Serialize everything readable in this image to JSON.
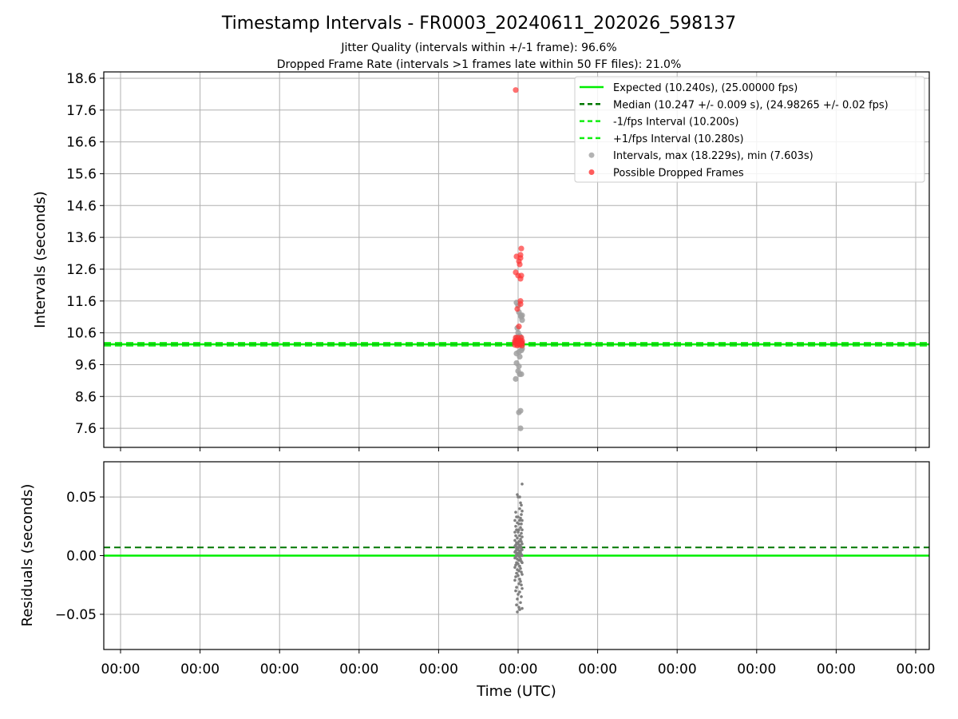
{
  "figure": {
    "title": "Timestamp Intervals - FR0003_20240611_202026_598137",
    "subtitle_line1": "Jitter Quality (intervals within +/-1 frame): 96.6%",
    "subtitle_line2": "Dropped Frame Rate (intervals >1 frames late within 50 FF files): 21.0%"
  },
  "colors": {
    "expected": "#00ee00",
    "median": "#007700",
    "fps_interval": "#11ee11",
    "intervals": "#a0a0a0",
    "dropped": "#ff3333",
    "residuals": "#7f7f7f",
    "grid": "#b0b0b0"
  },
  "chart_data": [
    {
      "type": "scatter",
      "ylabel": "Intervals (seconds)",
      "xlabel": "",
      "ylim": [
        7.0,
        18.8
      ],
      "yticks": [
        "7.6",
        "8.6",
        "9.6",
        "10.6",
        "11.6",
        "12.6",
        "13.6",
        "14.6",
        "15.6",
        "16.6",
        "17.6",
        "18.6"
      ],
      "grid": true,
      "legend_position": "top-right",
      "legend": [
        "Expected (10.240s), (25.00000 fps)",
        "Median (10.247 +/- 0.009 s), (24.98265 +/- 0.02 fps)",
        "-1/fps Interval (10.200s)",
        "+1/fps Interval (10.280s)",
        "Intervals, max (18.229s), min (7.603s)",
        "Possible Dropped Frames"
      ],
      "lines": {
        "expected": 10.24,
        "median": 10.247,
        "minus_fps": 10.2,
        "plus_fps": 10.28
      },
      "series": [
        {
          "name": "Intervals, max (18.229s), min (7.603s)",
          "points": [
            [
              -0.04,
              11.55
            ],
            [
              0.0,
              11.45
            ],
            [
              0.02,
              11.25
            ],
            [
              0.06,
              11.15
            ],
            [
              0.08,
              11.1
            ],
            [
              0.1,
              11.15
            ],
            [
              0.1,
              11.0
            ],
            [
              -0.02,
              10.75
            ],
            [
              0.0,
              10.6
            ],
            [
              0.04,
              10.5
            ],
            [
              -0.04,
              10.45
            ],
            [
              0.06,
              10.45
            ],
            [
              0.1,
              10.1
            ],
            [
              0.08,
              10.05
            ],
            [
              0.02,
              10.0
            ],
            [
              -0.04,
              9.95
            ],
            [
              0.04,
              9.85
            ],
            [
              -0.04,
              9.65
            ],
            [
              0.02,
              9.55
            ],
            [
              0.0,
              9.4
            ],
            [
              0.04,
              9.3
            ],
            [
              0.08,
              9.3
            ],
            [
              -0.06,
              9.15
            ],
            [
              0.02,
              8.1
            ],
            [
              0.06,
              8.15
            ],
            [
              0.06,
              7.6
            ]
          ]
        },
        {
          "name": "Possible Dropped Frames",
          "points": [
            [
              -0.06,
              18.23
            ],
            [
              0.08,
              13.25
            ],
            [
              0.06,
              13.05
            ],
            [
              -0.04,
              13.0
            ],
            [
              0.06,
              12.95
            ],
            [
              0.02,
              12.85
            ],
            [
              0.04,
              12.75
            ],
            [
              -0.06,
              12.5
            ],
            [
              0.0,
              12.4
            ],
            [
              0.08,
              12.4
            ],
            [
              0.06,
              12.3
            ],
            [
              0.06,
              11.6
            ],
            [
              0.06,
              11.5
            ],
            [
              -0.02,
              11.35
            ],
            [
              0.02,
              10.8
            ],
            [
              -0.06,
              10.45
            ],
            [
              0.0,
              10.45
            ],
            [
              0.08,
              10.45
            ],
            [
              -0.08,
              10.35
            ],
            [
              -0.04,
              10.35
            ],
            [
              0.02,
              10.35
            ],
            [
              0.06,
              10.35
            ],
            [
              0.1,
              10.35
            ],
            [
              -0.08,
              10.3
            ],
            [
              -0.02,
              10.3
            ],
            [
              0.04,
              10.3
            ],
            [
              0.08,
              10.3
            ],
            [
              -0.06,
              10.28
            ],
            [
              0.0,
              10.28
            ],
            [
              0.06,
              10.28
            ],
            [
              0.1,
              10.28
            ],
            [
              -0.04,
              10.25
            ],
            [
              0.02,
              10.25
            ],
            [
              0.08,
              10.25
            ],
            [
              -0.08,
              10.22
            ],
            [
              0.04,
              10.22
            ],
            [
              0.1,
              10.2
            ],
            [
              -0.02,
              10.2
            ]
          ]
        }
      ]
    },
    {
      "type": "scatter",
      "ylabel": "Residuals (seconds)",
      "xlabel": "Time (UTC)",
      "ylim": [
        -0.08,
        0.08
      ],
      "yticks": [
        "−0.05",
        "0.00",
        "0.05"
      ],
      "xticks": [
        "00:00",
        "00:00",
        "00:00",
        "00:00",
        "00:00",
        "00:00",
        "00:00",
        "00:00",
        "00:00",
        "00:00",
        "00:00"
      ],
      "grid": true,
      "lines": {
        "expected": 0.0,
        "median": 0.007
      },
      "series": [
        {
          "name": "residuals",
          "points": [
            [
              0.1,
              0.061
            ],
            [
              -0.02,
              0.052
            ],
            [
              0.0,
              0.05
            ],
            [
              0.04,
              0.05
            ],
            [
              0.06,
              0.045
            ],
            [
              0.08,
              0.043
            ],
            [
              0.04,
              0.04
            ],
            [
              0.1,
              0.038
            ],
            [
              -0.06,
              0.037
            ],
            [
              0.08,
              0.035
            ],
            [
              -0.04,
              0.033
            ],
            [
              0.0,
              0.033
            ],
            [
              0.06,
              0.032
            ],
            [
              -0.08,
              0.03
            ],
            [
              0.04,
              0.03
            ],
            [
              0.1,
              0.03
            ],
            [
              -0.02,
              0.028
            ],
            [
              0.02,
              0.027
            ],
            [
              0.08,
              0.027
            ],
            [
              -0.06,
              0.025
            ],
            [
              0.06,
              0.024
            ],
            [
              -0.04,
              0.022
            ],
            [
              0.02,
              0.022
            ],
            [
              0.1,
              0.022
            ],
            [
              -0.08,
              0.02
            ],
            [
              0.0,
              0.02
            ],
            [
              0.08,
              0.019
            ],
            [
              -0.06,
              0.017
            ],
            [
              0.04,
              0.017
            ],
            [
              0.1,
              0.016
            ],
            [
              -0.02,
              0.015
            ],
            [
              0.06,
              0.014
            ],
            [
              -0.08,
              0.013
            ],
            [
              0.02,
              0.012
            ],
            [
              0.08,
              0.012
            ],
            [
              -0.04,
              0.011
            ],
            [
              0.0,
              0.01
            ],
            [
              0.1,
              0.01
            ],
            [
              -0.06,
              0.009
            ],
            [
              0.04,
              0.009
            ],
            [
              -0.08,
              0.008
            ],
            [
              0.06,
              0.008
            ],
            [
              -0.02,
              0.007
            ],
            [
              0.02,
              0.007
            ],
            [
              0.08,
              0.006
            ],
            [
              -0.04,
              0.006
            ],
            [
              0.1,
              0.005
            ],
            [
              0.0,
              0.005
            ],
            [
              -0.06,
              0.004
            ],
            [
              0.04,
              0.004
            ],
            [
              -0.08,
              0.003
            ],
            [
              0.06,
              0.003
            ],
            [
              -0.02,
              0.002
            ],
            [
              0.02,
              0.002
            ],
            [
              0.08,
              0.001
            ],
            [
              -0.04,
              0.001
            ],
            [
              0.1,
              0.0
            ],
            [
              0.0,
              0.0
            ],
            [
              -0.06,
              -0.001
            ],
            [
              0.04,
              -0.001
            ],
            [
              -0.08,
              -0.002
            ],
            [
              0.06,
              -0.003
            ],
            [
              -0.02,
              -0.003
            ],
            [
              0.02,
              -0.004
            ],
            [
              0.08,
              -0.005
            ],
            [
              -0.04,
              -0.006
            ],
            [
              0.1,
              -0.006
            ],
            [
              0.0,
              -0.007
            ],
            [
              -0.06,
              -0.008
            ],
            [
              0.04,
              -0.009
            ],
            [
              -0.08,
              -0.01
            ],
            [
              0.06,
              -0.011
            ],
            [
              -0.02,
              -0.012
            ],
            [
              0.02,
              -0.013
            ],
            [
              0.08,
              -0.014
            ],
            [
              -0.04,
              -0.015
            ],
            [
              0.1,
              -0.016
            ],
            [
              0.0,
              -0.017
            ],
            [
              -0.06,
              -0.018
            ],
            [
              0.04,
              -0.02
            ],
            [
              -0.08,
              -0.021
            ],
            [
              0.06,
              -0.022
            ],
            [
              0.02,
              -0.024
            ],
            [
              0.08,
              -0.025
            ],
            [
              -0.04,
              -0.027
            ],
            [
              0.1,
              -0.028
            ],
            [
              -0.06,
              -0.03
            ],
            [
              0.04,
              -0.031
            ],
            [
              0.0,
              -0.033
            ],
            [
              0.08,
              -0.035
            ],
            [
              -0.02,
              -0.037
            ],
            [
              0.06,
              -0.04
            ],
            [
              -0.04,
              -0.042
            ],
            [
              0.02,
              -0.044
            ],
            [
              0.1,
              -0.045
            ],
            [
              0.04,
              -0.046
            ],
            [
              -0.02,
              -0.048
            ]
          ]
        }
      ]
    }
  ]
}
